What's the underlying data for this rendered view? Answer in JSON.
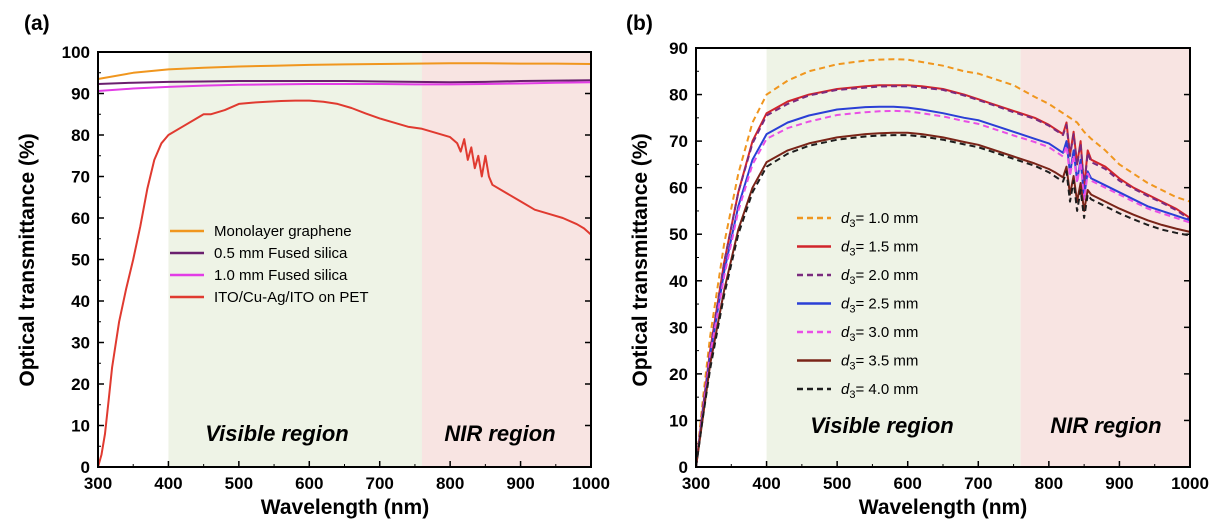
{
  "chart_data": [
    {
      "type": "line",
      "panel_label": "(a)",
      "xlabel": "Wavelength (nm)",
      "ylabel": "Optical transmittance (%)",
      "xlim": [
        300,
        1000
      ],
      "ylim": [
        0,
        100
      ],
      "xticks": [
        300,
        400,
        500,
        600,
        700,
        800,
        900,
        1000
      ],
      "yticks": [
        0,
        10,
        20,
        30,
        40,
        50,
        60,
        70,
        80,
        90,
        100
      ],
      "regions": [
        {
          "label": "Visible region",
          "x": [
            400,
            760
          ],
          "color": "#eef3e6"
        },
        {
          "label": "NIR region",
          "x": [
            760,
            1000
          ],
          "color": "#f8e4e2"
        }
      ],
      "legend_position": "center",
      "series": [
        {
          "name": "Monolayer graphene",
          "color": "#f0961e",
          "dash": "solid",
          "x": [
            300,
            350,
            400,
            450,
            500,
            550,
            600,
            650,
            700,
            750,
            800,
            850,
            900,
            950,
            1000
          ],
          "y": [
            93.5,
            95,
            95.8,
            96.2,
            96.5,
            96.7,
            96.9,
            97.0,
            97.1,
            97.2,
            97.3,
            97.3,
            97.2,
            97.2,
            97.1
          ]
        },
        {
          "name": "0.5 mm Fused silica",
          "color": "#6a1f6e",
          "dash": "solid",
          "x": [
            300,
            350,
            400,
            450,
            500,
            550,
            600,
            650,
            700,
            750,
            800,
            850,
            900,
            950,
            1000
          ],
          "y": [
            92.3,
            92.6,
            92.8,
            92.9,
            93.0,
            93.0,
            93.0,
            93.0,
            92.9,
            92.8,
            92.7,
            92.8,
            93.0,
            93.1,
            93.2
          ]
        },
        {
          "name": "1.0 mm Fused silica",
          "color": "#e23ce6",
          "dash": "solid",
          "x": [
            300,
            350,
            400,
            450,
            500,
            550,
            600,
            650,
            700,
            750,
            800,
            850,
            900,
            950,
            1000
          ],
          "y": [
            90.6,
            91.2,
            91.6,
            91.9,
            92.1,
            92.2,
            92.3,
            92.3,
            92.3,
            92.2,
            92.2,
            92.3,
            92.4,
            92.6,
            92.7
          ]
        },
        {
          "name": "ITO/Cu-Ag/ITO on PET",
          "color": "#e03a30",
          "dash": "solid",
          "x": [
            300,
            305,
            310,
            315,
            320,
            330,
            340,
            350,
            360,
            370,
            380,
            390,
            400,
            420,
            440,
            450,
            460,
            480,
            500,
            520,
            540,
            560,
            580,
            600,
            620,
            640,
            660,
            680,
            700,
            720,
            740,
            760,
            780,
            800,
            810,
            815,
            820,
            825,
            830,
            835,
            840,
            845,
            850,
            855,
            860,
            880,
            900,
            920,
            940,
            960,
            980,
            990,
            1000
          ],
          "y": [
            0,
            3,
            8,
            16,
            24,
            35,
            43,
            50,
            58,
            67,
            74,
            78,
            80,
            82,
            84,
            85,
            85,
            86,
            87.5,
            87.8,
            88,
            88.2,
            88.3,
            88.3,
            88,
            87.5,
            86.5,
            85.2,
            84,
            83,
            82,
            81.5,
            80.5,
            79.5,
            78,
            76,
            79,
            74,
            77,
            72,
            75,
            70,
            75,
            70,
            68,
            66,
            64,
            62,
            61,
            60,
            58.5,
            57.5,
            56
          ]
        }
      ]
    },
    {
      "type": "line",
      "panel_label": "(b)",
      "xlabel": "Wavelength (nm)",
      "ylabel": "Optical transmittance (%)",
      "xlim": [
        300,
        1000
      ],
      "ylim": [
        0,
        90
      ],
      "xticks": [
        300,
        400,
        500,
        600,
        700,
        800,
        900,
        1000
      ],
      "yticks": [
        0,
        10,
        20,
        30,
        40,
        50,
        60,
        70,
        80,
        90
      ],
      "regions": [
        {
          "label": "Visible region",
          "x": [
            400,
            760
          ],
          "color": "#eef3e6"
        },
        {
          "label": "NIR region",
          "x": [
            760,
            1000
          ],
          "color": "#f8e4e2"
        }
      ],
      "legend_position": "center-left",
      "series": [
        {
          "name_var": "d",
          "name_sub": "3",
          "name_rest": "= 1.0 mm",
          "color": "#f0961e",
          "dash": "dashed",
          "x": [
            300,
            310,
            320,
            340,
            360,
            380,
            400,
            430,
            460,
            500,
            540,
            560,
            580,
            600,
            620,
            650,
            680,
            700,
            720,
            750,
            780,
            800,
            820,
            830,
            840,
            850,
            860,
            880,
            900,
            920,
            940,
            960,
            980,
            1000
          ],
          "y": [
            0,
            15,
            28,
            48,
            63,
            74,
            80,
            83,
            85,
            86.5,
            87.3,
            87.5,
            87.6,
            87.5,
            87,
            86.2,
            85,
            84.5,
            83.5,
            82,
            79.5,
            78,
            76,
            75,
            74,
            72,
            70.5,
            68,
            65,
            63,
            61,
            59.5,
            58,
            57
          ]
        },
        {
          "name_var": "d",
          "name_sub": "3",
          "name_rest": "= 1.5 mm",
          "color": "#d1242b",
          "dash": "solid",
          "x": [
            300,
            310,
            320,
            340,
            360,
            380,
            400,
            430,
            460,
            500,
            540,
            560,
            580,
            600,
            620,
            650,
            680,
            700,
            720,
            750,
            780,
            800,
            810,
            820,
            825,
            830,
            835,
            840,
            845,
            850,
            855,
            860,
            880,
            900,
            920,
            940,
            960,
            980,
            1000
          ],
          "y": [
            0,
            13,
            25,
            44,
            59,
            70,
            76,
            78.5,
            80,
            81.2,
            81.8,
            82,
            82,
            82,
            81.8,
            81.2,
            80,
            79,
            78,
            76.5,
            75,
            73.5,
            72.5,
            71.5,
            74,
            67,
            72,
            65,
            70,
            60,
            68,
            66,
            64.5,
            62,
            60,
            58.5,
            57,
            55.5,
            53.5
          ]
        },
        {
          "name_var": "d",
          "name_sub": "3",
          "name_rest": "= 2.0 mm",
          "color": "#7a2a7e",
          "dash": "dashed",
          "x": [
            300,
            310,
            320,
            340,
            360,
            380,
            400,
            430,
            460,
            500,
            540,
            560,
            580,
            600,
            620,
            650,
            680,
            700,
            720,
            750,
            780,
            800,
            810,
            820,
            825,
            830,
            835,
            840,
            845,
            850,
            855,
            860,
            880,
            900,
            920,
            940,
            960,
            980,
            1000
          ],
          "y": [
            0,
            13,
            25,
            44,
            59,
            69.5,
            75.5,
            78,
            79.8,
            81,
            81.5,
            81.7,
            81.8,
            81.8,
            81.5,
            81,
            79.8,
            78.8,
            77.8,
            76.2,
            74.8,
            73.3,
            72.3,
            71.3,
            73.5,
            66.8,
            71.5,
            64.8,
            69.5,
            60,
            67.5,
            65.5,
            64,
            61.5,
            59.8,
            58.2,
            56.8,
            55.2,
            53.2
          ]
        },
        {
          "name_var": "d",
          "name_sub": "3",
          "name_rest": "= 2.5 mm",
          "color": "#2a3fd6",
          "dash": "solid",
          "x": [
            300,
            310,
            320,
            340,
            360,
            380,
            400,
            430,
            460,
            500,
            540,
            560,
            580,
            600,
            620,
            650,
            680,
            700,
            720,
            750,
            780,
            800,
            810,
            820,
            825,
            830,
            835,
            840,
            845,
            850,
            855,
            860,
            880,
            900,
            920,
            940,
            960,
            980,
            1000
          ],
          "y": [
            0,
            12,
            24,
            42,
            56,
            66,
            71.5,
            74,
            75.5,
            76.8,
            77.3,
            77.4,
            77.4,
            77.2,
            76.8,
            76,
            75,
            74.5,
            73.5,
            72,
            70.5,
            69.5,
            68.5,
            67.5,
            70,
            63,
            68,
            61.5,
            66,
            58,
            63.5,
            62,
            60.5,
            59,
            57.5,
            56,
            55,
            54,
            53
          ]
        },
        {
          "name_var": "d",
          "name_sub": "3",
          "name_rest": "= 3.0 mm",
          "color": "#e94fe6",
          "dash": "dashed",
          "x": [
            300,
            310,
            320,
            340,
            360,
            380,
            400,
            430,
            460,
            500,
            540,
            560,
            580,
            600,
            620,
            650,
            680,
            700,
            720,
            750,
            780,
            800,
            810,
            820,
            825,
            830,
            835,
            840,
            845,
            850,
            855,
            860,
            880,
            900,
            920,
            940,
            960,
            980,
            1000
          ],
          "y": [
            0,
            12,
            24,
            41,
            55,
            65,
            70.5,
            72.8,
            74.2,
            75.6,
            76.2,
            76.4,
            76.5,
            76.4,
            76,
            75.3,
            74.3,
            73.7,
            72.7,
            71.2,
            69.8,
            68.7,
            67.7,
            66.7,
            69,
            62.5,
            67,
            61,
            65.5,
            57.5,
            63,
            61.5,
            60,
            58.5,
            57,
            55.5,
            54.5,
            53.5,
            52.5
          ]
        },
        {
          "name_var": "d",
          "name_sub": "3",
          "name_rest": "= 3.5 mm",
          "color": "#7a2418",
          "dash": "solid",
          "x": [
            300,
            310,
            320,
            340,
            360,
            380,
            400,
            430,
            460,
            500,
            540,
            560,
            580,
            600,
            620,
            650,
            680,
            700,
            720,
            750,
            780,
            800,
            810,
            820,
            825,
            830,
            835,
            840,
            845,
            850,
            855,
            860,
            880,
            900,
            920,
            940,
            960,
            980,
            1000
          ],
          "y": [
            0,
            11,
            22,
            38,
            51,
            60,
            65.5,
            68,
            69.5,
            70.8,
            71.5,
            71.7,
            71.8,
            71.8,
            71.5,
            70.8,
            69.8,
            69.2,
            68.2,
            66.7,
            65.2,
            64,
            63.2,
            62.2,
            64.5,
            58.5,
            62.5,
            57,
            61,
            55,
            59.5,
            58.5,
            57,
            55.5,
            54.2,
            53,
            52,
            51.2,
            50.5
          ]
        },
        {
          "name_var": "d",
          "name_sub": "3",
          "name_rest": "= 4.0 mm",
          "color": "#1e1e1e",
          "dash": "dashed",
          "x": [
            300,
            310,
            320,
            340,
            360,
            380,
            400,
            430,
            460,
            500,
            540,
            560,
            580,
            600,
            620,
            650,
            680,
            700,
            720,
            750,
            780,
            800,
            810,
            820,
            825,
            830,
            835,
            840,
            845,
            850,
            855,
            860,
            880,
            900,
            920,
            940,
            960,
            980,
            1000
          ],
          "y": [
            0,
            11,
            21,
            37,
            50,
            59,
            64.5,
            67.3,
            69,
            70.3,
            71,
            71.2,
            71.3,
            71.3,
            71,
            70.3,
            69.3,
            68.7,
            67.7,
            66.2,
            64.7,
            63.3,
            62.3,
            61.3,
            63.5,
            57,
            61.5,
            55,
            59.5,
            53.5,
            58.5,
            57.5,
            56,
            54.5,
            53.2,
            52,
            51,
            50.3,
            49.7
          ]
        }
      ]
    }
  ]
}
